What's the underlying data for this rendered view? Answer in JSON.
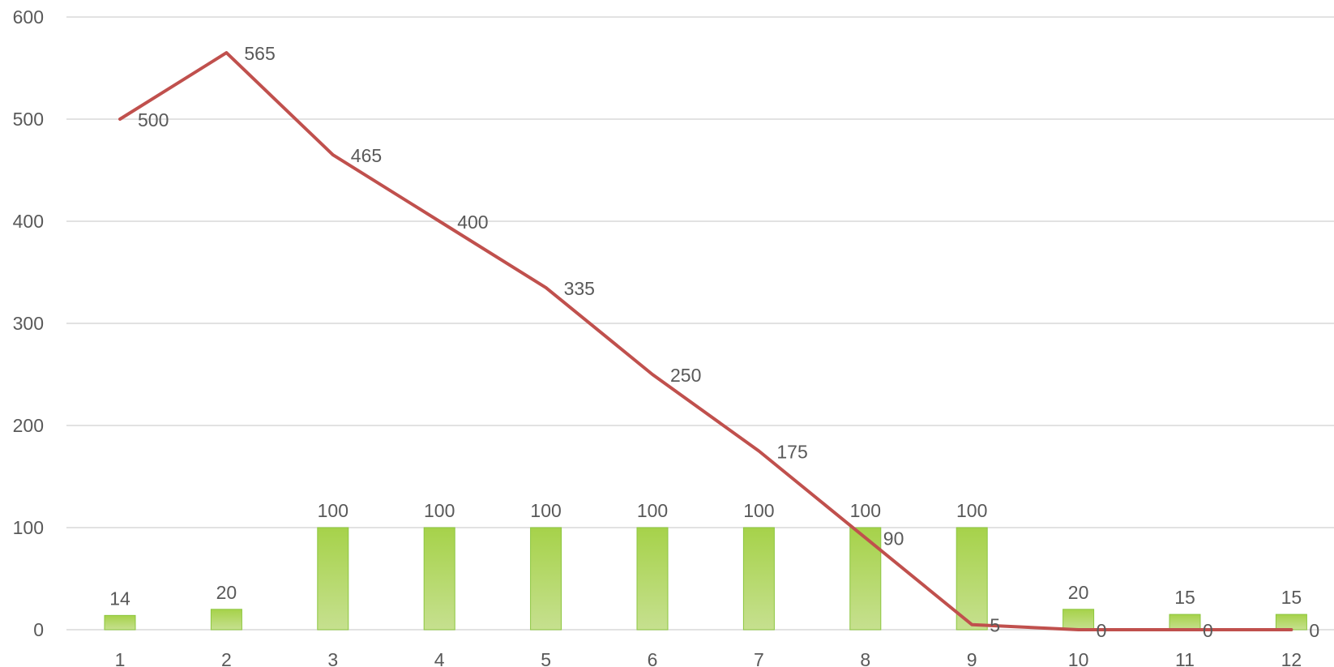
{
  "chart_data": {
    "type": "bar",
    "categories": [
      "1",
      "2",
      "3",
      "4",
      "5",
      "6",
      "7",
      "8",
      "9",
      "10",
      "11",
      "12"
    ],
    "series": [
      {
        "type": "bar",
        "values": [
          14,
          20,
          100,
          100,
          100,
          100,
          100,
          100,
          100,
          20,
          15,
          15
        ],
        "color": "#92d050"
      },
      {
        "type": "line",
        "values": [
          500,
          565,
          465,
          400,
          335,
          250,
          175,
          90,
          5,
          0,
          0,
          0
        ],
        "color": "#c0504d"
      }
    ],
    "y_ticks": [
      "0",
      "100",
      "200",
      "300",
      "400",
      "500",
      "600"
    ],
    "ylim": [
      0,
      600
    ],
    "grid": true,
    "legend": "none",
    "title": "",
    "xlabel": "",
    "ylabel": ""
  }
}
